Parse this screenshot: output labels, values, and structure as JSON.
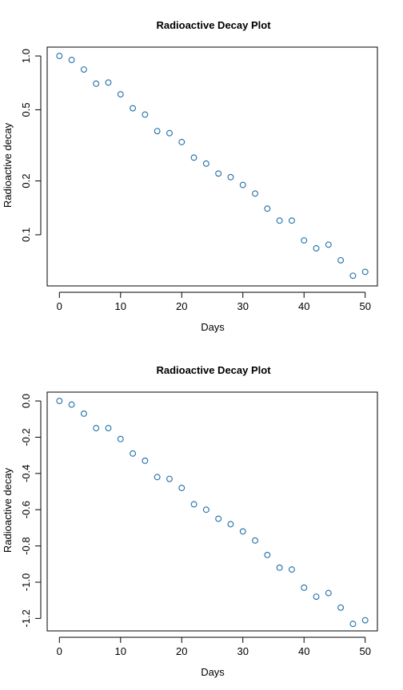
{
  "chart_data": [
    {
      "type": "scatter",
      "title": "Radioactive Decay Plot",
      "xlabel": "Days",
      "ylabel": "Radioactive decay",
      "y_scale": "log",
      "xlim": [
        0,
        50
      ],
      "ylim": [
        0.058,
        1.0
      ],
      "x_ticks": [
        0,
        10,
        20,
        30,
        40,
        50
      ],
      "x_tick_labels": [
        "0",
        "10",
        "20",
        "30",
        "40",
        "50"
      ],
      "y_ticks": [
        0.1,
        0.2,
        0.5,
        1.0
      ],
      "y_tick_labels": [
        "0.1",
        "0.2",
        "0.5",
        "1.0"
      ],
      "grid": false,
      "marker": "open-circle",
      "point_color": "#1f6fa8",
      "x": [
        0,
        2,
        4,
        6,
        8,
        10,
        12,
        14,
        16,
        18,
        20,
        22,
        24,
        26,
        28,
        30,
        32,
        34,
        36,
        38,
        40,
        42,
        44,
        46,
        48,
        50
      ],
      "y": [
        1.0,
        0.95,
        0.84,
        0.7,
        0.71,
        0.61,
        0.51,
        0.47,
        0.38,
        0.37,
        0.33,
        0.27,
        0.25,
        0.22,
        0.21,
        0.19,
        0.17,
        0.14,
        0.12,
        0.12,
        0.093,
        0.084,
        0.088,
        0.072,
        0.059,
        0.062
      ]
    },
    {
      "type": "scatter",
      "title": "Radioactive Decay Plot",
      "xlabel": "Days",
      "ylabel": "Radioactive decay",
      "y_scale": "linear",
      "xlim": [
        0,
        50
      ],
      "ylim": [
        -1.22,
        0.0
      ],
      "x_ticks": [
        0,
        10,
        20,
        30,
        40,
        50
      ],
      "x_tick_labels": [
        "0",
        "10",
        "20",
        "30",
        "40",
        "50"
      ],
      "y_ticks": [
        -1.2,
        -1.0,
        -0.8,
        -0.6,
        -0.4,
        -0.2,
        0.0
      ],
      "y_tick_labels": [
        "-1.2",
        "-1.0",
        "-0.8",
        "-0.6",
        "-0.4",
        "-0.2",
        "0.0"
      ],
      "grid": false,
      "marker": "open-circle",
      "point_color": "#1f6fa8",
      "x": [
        0,
        2,
        4,
        6,
        8,
        10,
        12,
        14,
        16,
        18,
        20,
        22,
        24,
        26,
        28,
        30,
        32,
        34,
        36,
        38,
        40,
        42,
        44,
        46,
        48,
        50
      ],
      "y": [
        0.0,
        -0.02,
        -0.07,
        -0.15,
        -0.15,
        -0.21,
        -0.29,
        -0.33,
        -0.42,
        -0.43,
        -0.48,
        -0.57,
        -0.6,
        -0.65,
        -0.68,
        -0.72,
        -0.77,
        -0.85,
        -0.92,
        -0.93,
        -1.03,
        -1.08,
        -1.06,
        -1.14,
        -1.23,
        -1.21
      ]
    }
  ]
}
